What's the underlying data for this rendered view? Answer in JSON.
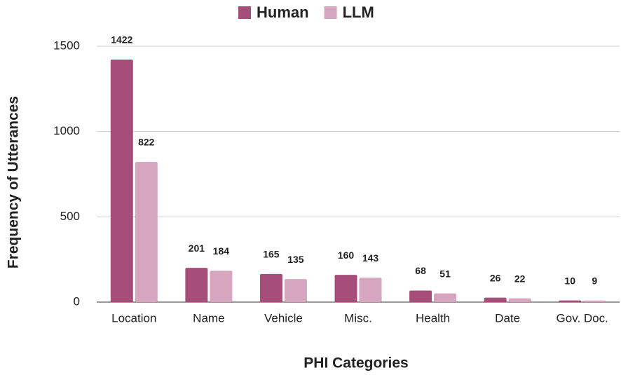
{
  "chart_data": {
    "type": "bar",
    "categories": [
      "Location",
      "Name",
      "Vehicle",
      "Misc.",
      "Health",
      "Date",
      "Gov. Doc."
    ],
    "series": [
      {
        "name": "Human",
        "color": "#a64d79",
        "values": [
          1422,
          201,
          165,
          160,
          68,
          26,
          10
        ]
      },
      {
        "name": "LLM",
        "color": "#d5a6bd",
        "values": [
          822,
          184,
          135,
          143,
          51,
          22,
          9
        ]
      }
    ],
    "x_label": "PHI Categories",
    "y_label": "Frequency of Utterances",
    "ylim": [
      0,
      1500
    ],
    "yticks": [
      0,
      500,
      1000,
      1500
    ],
    "grid": true,
    "legend": "top"
  }
}
